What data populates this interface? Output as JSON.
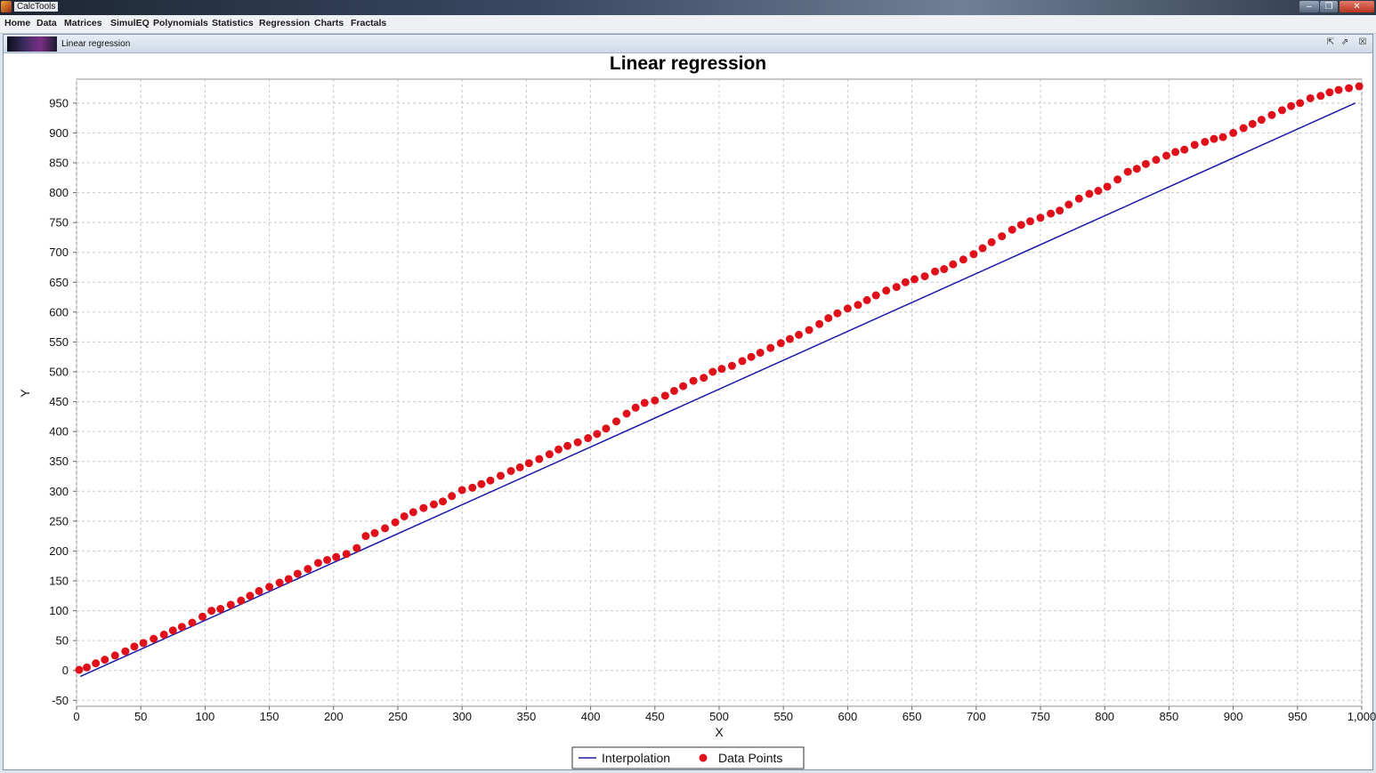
{
  "app": {
    "title": "CalcTools"
  },
  "window_controls": {
    "minimize": "–",
    "maximize": "❐",
    "close": "✕"
  },
  "menu": [
    {
      "label": "Home"
    },
    {
      "label": "Data"
    },
    {
      "label": "Matrices"
    },
    {
      "label": "SimulEQ"
    },
    {
      "label": "Polynomials"
    },
    {
      "label": "Statistics"
    },
    {
      "label": "Regression"
    },
    {
      "label": "Charts"
    },
    {
      "label": "Fractals"
    }
  ],
  "frame": {
    "title": "Linear regression",
    "controls": {
      "iconify": "⇱",
      "maximize": "⇗",
      "close": "☒"
    }
  },
  "colors": {
    "line": "#1a1aa6",
    "points": "#e0101a",
    "grid": "#c8c8c8"
  },
  "chart_data": {
    "type": "scatter",
    "title": "Linear regression",
    "xlabel": "X",
    "ylabel": "Y",
    "xlim": [
      0,
      1000
    ],
    "ylim": [
      -60,
      990
    ],
    "xticks": [
      0,
      50,
      100,
      150,
      200,
      250,
      300,
      350,
      400,
      450,
      500,
      550,
      600,
      650,
      700,
      750,
      800,
      850,
      900,
      950,
      1000
    ],
    "xtick_labels": [
      "0",
      "50",
      "100",
      "150",
      "200",
      "250",
      "300",
      "350",
      "400",
      "450",
      "500",
      "550",
      "600",
      "650",
      "700",
      "750",
      "800",
      "850",
      "900",
      "950",
      "1,000"
    ],
    "yticks": [
      -50,
      0,
      50,
      100,
      150,
      200,
      250,
      300,
      350,
      400,
      450,
      500,
      550,
      600,
      650,
      700,
      750,
      800,
      850,
      900,
      950
    ],
    "grid": true,
    "legend": {
      "placement": "bottom-center",
      "items": [
        "Interpolation",
        "Data Points"
      ]
    },
    "series": [
      {
        "name": "Interpolation",
        "type": "line",
        "x": [
          3,
          995
        ],
        "y": [
          -10,
          950
        ]
      },
      {
        "name": "Data Points",
        "type": "scatter",
        "x": [
          2,
          8,
          15,
          22,
          30,
          38,
          45,
          52,
          60,
          68,
          75,
          82,
          90,
          98,
          105,
          112,
          120,
          128,
          135,
          142,
          150,
          158,
          165,
          172,
          180,
          188,
          195,
          202,
          210,
          218,
          225,
          232,
          240,
          248,
          255,
          262,
          270,
          278,
          285,
          292,
          300,
          308,
          315,
          322,
          330,
          338,
          345,
          352,
          360,
          368,
          375,
          382,
          390,
          398,
          405,
          412,
          420,
          428,
          435,
          442,
          450,
          458,
          465,
          472,
          480,
          488,
          495,
          502,
          510,
          518,
          525,
          532,
          540,
          548,
          555,
          562,
          570,
          578,
          585,
          592,
          600,
          608,
          615,
          622,
          630,
          638,
          645,
          652,
          660,
          668,
          675,
          682,
          690,
          698,
          705,
          712,
          720,
          728,
          735,
          742,
          750,
          758,
          765,
          772,
          780,
          788,
          795,
          802,
          810,
          818,
          825,
          832,
          840,
          848,
          855,
          862,
          870,
          878,
          885,
          892,
          900,
          908,
          915,
          922,
          930,
          938,
          945,
          952,
          960,
          968,
          975,
          982,
          990,
          998
        ],
        "y": [
          1,
          5,
          12,
          18,
          25,
          32,
          40,
          46,
          53,
          60,
          67,
          73,
          80,
          90,
          100,
          103,
          110,
          117,
          125,
          133,
          140,
          147,
          153,
          162,
          170,
          180,
          185,
          190,
          195,
          205,
          225,
          230,
          238,
          248,
          258,
          265,
          272,
          278,
          283,
          292,
          302,
          306,
          312,
          318,
          326,
          334,
          340,
          347,
          354,
          362,
          370,
          376,
          382,
          389,
          396,
          405,
          417,
          430,
          440,
          448,
          452,
          460,
          468,
          476,
          485,
          490,
          500,
          505,
          510,
          518,
          525,
          532,
          540,
          548,
          555,
          562,
          570,
          580,
          590,
          598,
          606,
          612,
          620,
          628,
          636,
          642,
          650,
          655,
          660,
          668,
          672,
          680,
          688,
          697,
          707,
          717,
          727,
          738,
          746,
          752,
          758,
          765,
          770,
          780,
          790,
          798,
          803,
          810,
          822,
          835,
          840,
          848,
          855,
          862,
          868,
          872,
          880,
          885,
          890,
          893,
          900,
          908,
          915,
          922,
          930,
          938,
          945,
          950,
          958,
          962,
          968,
          972,
          975,
          978
        ]
      }
    ]
  }
}
